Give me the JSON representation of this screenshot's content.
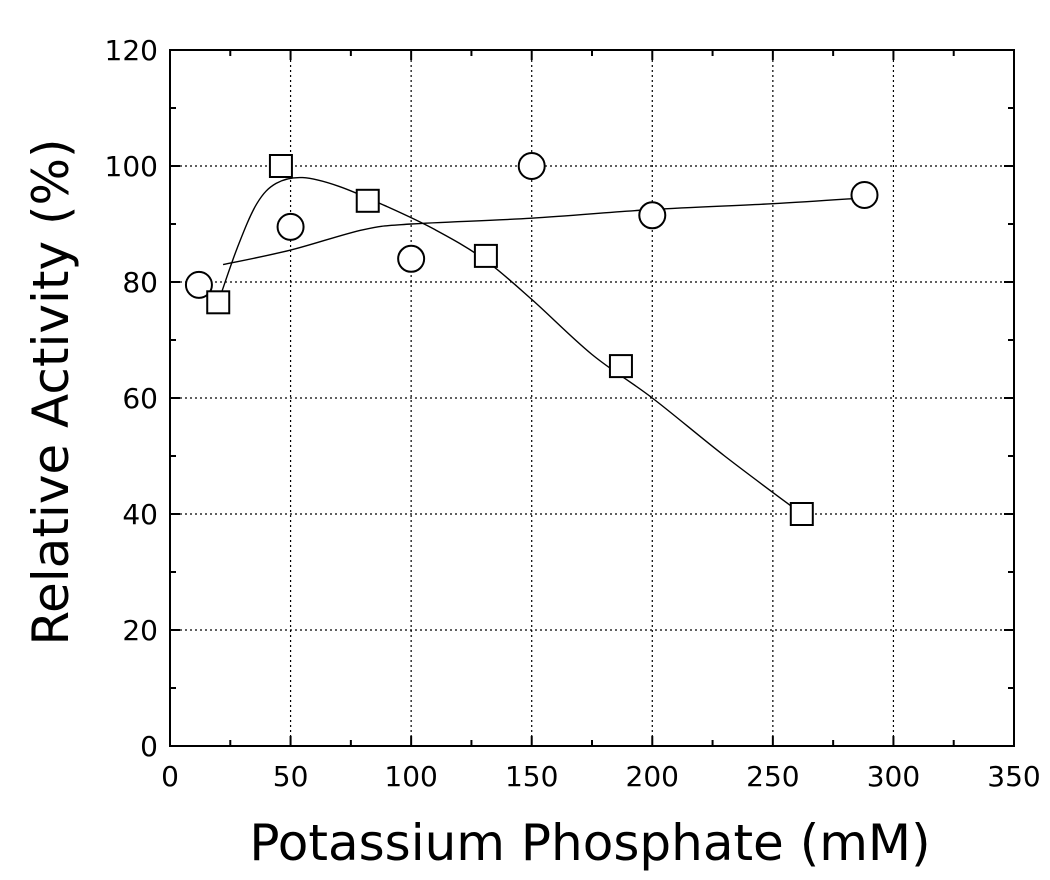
{
  "chart_data": {
    "type": "scatter",
    "title": "",
    "xlabel": "Potassium Phosphate (mM)",
    "ylabel": "Relative Activity (%)",
    "xlim": [
      0,
      350
    ],
    "ylim": [
      0,
      120
    ],
    "x_ticks": [
      "0",
      "50",
      "100",
      "150",
      "200",
      "250",
      "300",
      "350"
    ],
    "y_ticks": [
      "0",
      "20",
      "40",
      "60",
      "80",
      "100",
      "120"
    ],
    "grid": true,
    "legend": "none",
    "series": [
      {
        "marker": "circle",
        "points": [
          {
            "x": 12,
            "y": 79.5
          },
          {
            "x": 50,
            "y": 89.5
          },
          {
            "x": 100,
            "y": 84
          },
          {
            "x": 150,
            "y": 100
          },
          {
            "x": 200,
            "y": 91.5
          },
          {
            "x": 288,
            "y": 95
          }
        ],
        "fit_curve": [
          {
            "x": 22,
            "y": 83
          },
          {
            "x": 50,
            "y": 85.5
          },
          {
            "x": 80,
            "y": 89
          },
          {
            "x": 100,
            "y": 90
          },
          {
            "x": 150,
            "y": 91
          },
          {
            "x": 200,
            "y": 92.5
          },
          {
            "x": 250,
            "y": 93.5
          },
          {
            "x": 288,
            "y": 94.5
          }
        ]
      },
      {
        "marker": "square",
        "points": [
          {
            "x": 20,
            "y": 76.5
          },
          {
            "x": 46,
            "y": 100
          },
          {
            "x": 82,
            "y": 94
          },
          {
            "x": 131,
            "y": 84.5
          },
          {
            "x": 187,
            "y": 65.5
          },
          {
            "x": 262,
            "y": 40
          }
        ],
        "fit_curve": [
          {
            "x": 20,
            "y": 76.5
          },
          {
            "x": 28,
            "y": 86
          },
          {
            "x": 36,
            "y": 93.5
          },
          {
            "x": 44,
            "y": 97
          },
          {
            "x": 55,
            "y": 98
          },
          {
            "x": 70,
            "y": 96.5
          },
          {
            "x": 90,
            "y": 93
          },
          {
            "x": 110,
            "y": 89
          },
          {
            "x": 130,
            "y": 84
          },
          {
            "x": 150,
            "y": 77
          },
          {
            "x": 175,
            "y": 67.5
          },
          {
            "x": 200,
            "y": 60
          },
          {
            "x": 230,
            "y": 50
          },
          {
            "x": 262,
            "y": 40
          }
        ]
      }
    ]
  }
}
